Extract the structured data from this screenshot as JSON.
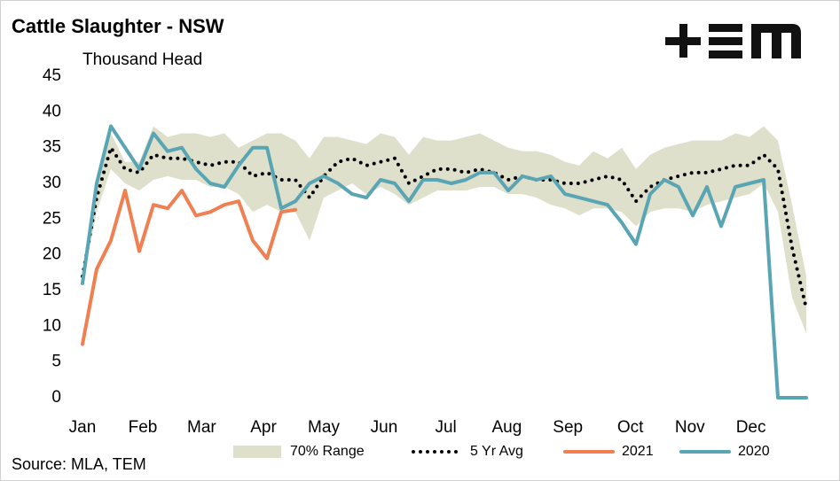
{
  "chart_data": {
    "type": "line",
    "title": "Cattle Slaughter - NSW",
    "y_label": "Thousand Head",
    "source": "Source: MLA, TEM",
    "x": [
      1,
      2,
      3,
      4,
      5,
      6,
      7,
      8,
      9,
      10,
      11,
      12,
      13,
      14,
      15,
      16,
      17,
      18,
      19,
      20,
      21,
      22,
      23,
      24,
      25,
      26,
      27,
      28,
      29,
      30,
      31,
      32,
      33,
      34,
      35,
      36,
      37,
      38,
      39,
      40,
      41,
      42,
      43,
      44,
      45,
      46,
      47,
      48,
      49,
      50,
      51,
      52
    ],
    "xlim": [
      1,
      52
    ],
    "xticks": [
      {
        "value": 1,
        "label": "Jan"
      },
      {
        "value": 5.25,
        "label": "Feb"
      },
      {
        "value": 9.4,
        "label": "Mar"
      },
      {
        "value": 13.75,
        "label": "Apr"
      },
      {
        "value": 18,
        "label": "May"
      },
      {
        "value": 22.25,
        "label": "Jun"
      },
      {
        "value": 26.6,
        "label": "Jul"
      },
      {
        "value": 30.9,
        "label": "Aug"
      },
      {
        "value": 35.2,
        "label": "Sep"
      },
      {
        "value": 39.6,
        "label": "Oct"
      },
      {
        "value": 43.8,
        "label": "Nov"
      },
      {
        "value": 48.1,
        "label": "Dec"
      }
    ],
    "ylim": [
      0,
      45
    ],
    "yticks": [
      0,
      5,
      10,
      15,
      20,
      25,
      30,
      35,
      40,
      45
    ],
    "grid": false,
    "legend": "bottom",
    "series": [
      {
        "name": "70% Range",
        "style": "band",
        "color": "#dfe0cc",
        "upper": [
          18,
          30,
          37,
          33,
          33,
          38,
          36.5,
          37,
          37,
          36.5,
          37,
          35,
          36,
          37,
          37,
          36,
          33.5,
          36.5,
          36.5,
          36,
          35.5,
          37,
          36.5,
          34,
          36.5,
          36,
          36,
          36.5,
          37,
          36,
          35,
          34.5,
          34.5,
          34,
          33,
          32.5,
          34.5,
          33.5,
          35,
          32,
          34,
          35,
          35.5,
          36,
          36,
          36,
          37,
          36.5,
          38,
          36,
          27,
          17
        ],
        "lower": [
          16,
          26,
          32,
          30,
          29,
          30.5,
          31,
          30.5,
          30.5,
          29.5,
          29.5,
          28.5,
          26,
          27,
          26,
          26,
          22,
          28,
          29,
          30,
          28.5,
          29.5,
          28.5,
          27,
          28,
          29,
          29,
          29,
          29.5,
          29.5,
          28.5,
          28.5,
          28,
          27,
          26.5,
          25.5,
          26.5,
          26.5,
          26,
          24,
          26,
          26.5,
          26.5,
          26,
          27,
          27.5,
          28,
          28.5,
          30,
          26,
          14,
          9
        ]
      },
      {
        "name": "5 Yr Avg",
        "style": "dotted",
        "color": "#000000",
        "values": [
          17,
          28,
          35,
          32,
          31.5,
          34,
          33.5,
          33.5,
          33,
          32.5,
          33,
          33,
          31,
          31.5,
          30.5,
          30.5,
          28,
          31,
          33,
          33.5,
          32.5,
          33,
          33.5,
          30,
          31,
          32,
          32,
          31.5,
          32,
          31.5,
          30.5,
          31,
          30.5,
          30.5,
          30,
          30,
          30.5,
          31,
          30.5,
          27.5,
          29.5,
          30.5,
          31,
          31.5,
          31.5,
          32,
          32.5,
          32.5,
          34,
          32,
          21,
          12.5
        ]
      },
      {
        "name": "2021",
        "style": "line",
        "color": "#f07f51",
        "values": [
          7.5,
          18,
          22,
          29,
          20.5,
          27,
          26.5,
          29,
          25.5,
          26,
          27,
          27.5,
          22,
          19.5,
          26,
          26.3,
          null,
          null,
          null,
          null,
          null,
          null,
          null,
          null,
          null,
          null,
          null,
          null,
          null,
          null,
          null,
          null,
          null,
          null,
          null,
          null,
          null,
          null,
          null,
          null,
          null,
          null,
          null,
          null,
          null,
          null,
          null,
          null,
          null,
          null,
          null,
          null
        ]
      },
      {
        "name": "2020",
        "style": "line",
        "color": "#5aa5b3",
        "values": [
          16,
          30,
          38,
          35,
          32,
          37,
          34.5,
          35,
          32,
          30,
          29.5,
          32.5,
          35,
          35,
          26.5,
          27.5,
          30,
          31,
          30,
          28.5,
          28,
          30.5,
          30,
          27.5,
          30.5,
          30.5,
          30,
          30.5,
          31.5,
          31.5,
          29,
          31,
          30.5,
          31,
          28.5,
          28,
          27.5,
          27,
          24.5,
          21.5,
          28.5,
          30.5,
          29.5,
          25.5,
          29.5,
          24,
          29.5,
          30,
          30.5,
          0,
          0,
          0
        ]
      }
    ]
  }
}
